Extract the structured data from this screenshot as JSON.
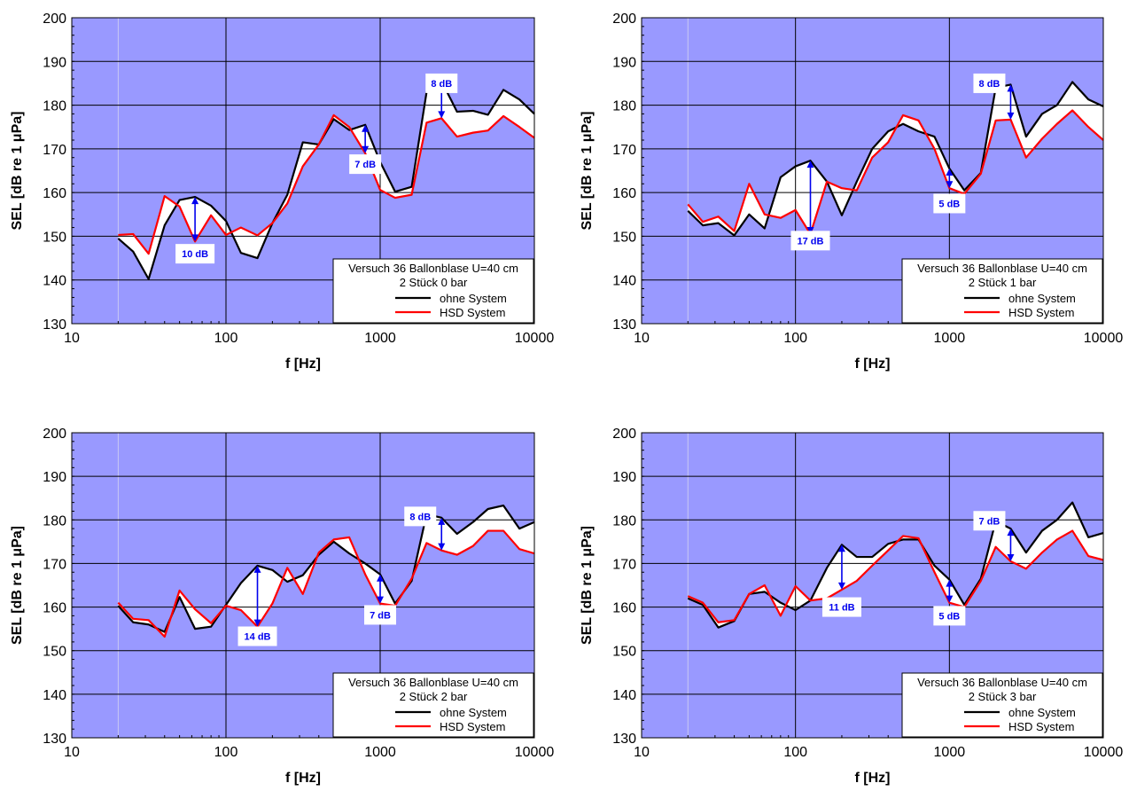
{
  "chart_data": [
    {
      "type": "line",
      "xscale": "log",
      "xlim": [
        10,
        10000
      ],
      "ylim": [
        130,
        200
      ],
      "xticks": [
        "10",
        "100",
        "1000",
        "10000"
      ],
      "yticks": [
        "130",
        "140",
        "150",
        "160",
        "170",
        "180",
        "190",
        "200"
      ],
      "xlabel": "f [Hz]",
      "ylabel": "SEL [dB re 1 μPa]",
      "plot_background": "#9999ff",
      "fill_between_color": "#ffffff",
      "grid": true,
      "legend": {
        "placement": "bottom-right",
        "title_line1": "Versuch 36 Ballonblase U=40 cm",
        "title_line2": "2 Stück 0 bar",
        "entries": [
          "ohne System",
          "HSD System"
        ]
      },
      "x": [
        20,
        25,
        31.5,
        40,
        50,
        63,
        80,
        100,
        125,
        160,
        200,
        250,
        315,
        400,
        500,
        630,
        800,
        1000,
        1250,
        1600,
        2000,
        2500,
        3150,
        4000,
        5000,
        6300,
        8000,
        10000
      ],
      "series": [
        {
          "name": "ohne System",
          "color": "#000000",
          "values": [
            149.5,
            146.5,
            140.2,
            152.5,
            158.3,
            159.0,
            157.0,
            153.5,
            146.2,
            145.0,
            153.0,
            159.5,
            171.5,
            171.0,
            176.8,
            174.3,
            175.5,
            167.0,
            160.2,
            161.3,
            183.0,
            185.5,
            178.5,
            178.7,
            177.8,
            183.5,
            181.3,
            178.0
          ]
        },
        {
          "name": "HSD System",
          "color": "#ff0000",
          "values": [
            150.3,
            150.5,
            146.0,
            159.2,
            156.8,
            148.8,
            154.8,
            150.3,
            152.0,
            150.2,
            153.0,
            157.5,
            166.0,
            171.0,
            177.7,
            175.0,
            169.0,
            160.6,
            158.8,
            159.5,
            176.0,
            177.0,
            172.8,
            173.7,
            174.2,
            177.5,
            175.0,
            172.5
          ]
        }
      ],
      "annotations": [
        {
          "text": "10 dB",
          "x": 63,
          "y_from": 159.0,
          "y_to": 148.8,
          "label_y": 146.0
        },
        {
          "text": "7 dB",
          "x": 800,
          "y_from": 175.5,
          "y_to": 169.0,
          "label_y": 166.5
        },
        {
          "text": "8 dB",
          "x": 2500,
          "y_from": 185.5,
          "y_to": 177.0,
          "label_y": 185.0
        }
      ]
    },
    {
      "type": "line",
      "xscale": "log",
      "xlim": [
        10,
        10000
      ],
      "ylim": [
        130,
        200
      ],
      "xticks": [
        "10",
        "100",
        "1000",
        "10000"
      ],
      "yticks": [
        "130",
        "140",
        "150",
        "160",
        "170",
        "180",
        "190",
        "200"
      ],
      "xlabel": "f [Hz]",
      "ylabel": "SEL [dB re 1 μPa]",
      "plot_background": "#9999ff",
      "fill_between_color": "#ffffff",
      "grid": true,
      "legend": {
        "placement": "bottom-right",
        "title_line1": "Versuch 36 Ballonblase U=40 cm",
        "title_line2": "2 Stück 1 bar",
        "entries": [
          "ohne System",
          "HSD System"
        ]
      },
      "x": [
        20,
        25,
        31.5,
        40,
        50,
        63,
        80,
        100,
        125,
        160,
        200,
        250,
        315,
        400,
        500,
        630,
        800,
        1000,
        1250,
        1600,
        2000,
        2500,
        3150,
        4000,
        5000,
        6300,
        8000,
        10000
      ],
      "series": [
        {
          "name": "ohne System",
          "color": "#000000",
          "values": [
            155.8,
            152.5,
            153.0,
            150.2,
            155.0,
            151.8,
            163.5,
            166.0,
            167.3,
            162.5,
            154.8,
            162.5,
            170.0,
            174.0,
            175.7,
            174.0,
            172.8,
            165.5,
            160.5,
            164.5,
            184.0,
            184.7,
            172.8,
            178.0,
            180.0,
            185.3,
            181.3,
            179.7
          ]
        },
        {
          "name": "HSD System",
          "color": "#ff0000",
          "values": [
            157.3,
            153.3,
            154.5,
            151.2,
            162.0,
            155.0,
            154.2,
            156.0,
            150.5,
            162.5,
            161.0,
            160.5,
            168.0,
            171.5,
            177.7,
            176.5,
            170.0,
            161.0,
            159.7,
            164.3,
            176.5,
            176.7,
            168.0,
            172.3,
            175.7,
            178.8,
            175.0,
            172.0
          ]
        }
      ],
      "annotations": [
        {
          "text": "17 dB",
          "x": 125,
          "y_from": 167.3,
          "y_to": 150.5,
          "label_y": 149.0
        },
        {
          "text": "5 dB",
          "x": 1000,
          "y_from": 165.5,
          "y_to": 161.0,
          "label_y": 157.5
        },
        {
          "text": "8 dB",
          "x": 2500,
          "y_from": 184.7,
          "y_to": 176.7,
          "label_y": 185.0
        }
      ]
    },
    {
      "type": "line",
      "xscale": "log",
      "xlim": [
        10,
        10000
      ],
      "ylim": [
        130,
        200
      ],
      "xticks": [
        "10",
        "100",
        "1000",
        "10000"
      ],
      "yticks": [
        "130",
        "140",
        "150",
        "160",
        "170",
        "180",
        "190",
        "200"
      ],
      "xlabel": "f [Hz]",
      "ylabel": "SEL [dB re 1 μPa]",
      "plot_background": "#9999ff",
      "fill_between_color": "#ffffff",
      "grid": true,
      "legend": {
        "placement": "bottom-right",
        "title_line1": "Versuch 36 Ballonblase U=40 cm",
        "title_line2": "2 Stück 2 bar",
        "entries": [
          "ohne System",
          "HSD System"
        ]
      },
      "x": [
        20,
        25,
        31.5,
        40,
        50,
        63,
        80,
        100,
        125,
        160,
        200,
        250,
        315,
        400,
        500,
        630,
        800,
        1000,
        1250,
        1600,
        2000,
        2500,
        3150,
        4000,
        5000,
        6300,
        8000,
        10000
      ],
      "series": [
        {
          "name": "ohne System",
          "color": "#000000",
          "values": [
            160.3,
            156.5,
            156.0,
            154.3,
            162.3,
            155.0,
            155.5,
            160.5,
            165.5,
            169.5,
            168.5,
            165.8,
            167.3,
            172.0,
            175.0,
            172.3,
            170.0,
            167.5,
            160.8,
            166.0,
            181.3,
            180.5,
            176.8,
            179.5,
            182.5,
            183.3,
            178.0,
            179.5
          ]
        },
        {
          "name": "HSD System",
          "color": "#ff0000",
          "values": [
            161.0,
            157.3,
            157.0,
            153.2,
            163.8,
            159.5,
            156.3,
            160.3,
            159.3,
            155.5,
            160.8,
            169.0,
            163.0,
            172.5,
            175.5,
            176.0,
            167.5,
            160.8,
            160.3,
            166.5,
            174.7,
            173.0,
            172.0,
            174.0,
            177.5,
            177.5,
            173.3,
            172.3
          ]
        }
      ],
      "annotations": [
        {
          "text": "14 dB",
          "x": 160,
          "y_from": 169.5,
          "y_to": 155.5,
          "label_y": 153.3
        },
        {
          "text": "7 dB",
          "x": 1000,
          "y_from": 167.5,
          "y_to": 160.8,
          "label_y": 158.2
        },
        {
          "text": "8 dB",
          "x": 2500,
          "y_from": 180.5,
          "y_to": 173.0,
          "label_y": 180.8
        }
      ]
    },
    {
      "type": "line",
      "xscale": "log",
      "xlim": [
        10,
        10000
      ],
      "ylim": [
        130,
        200
      ],
      "xticks": [
        "10",
        "100",
        "1000",
        "10000"
      ],
      "yticks": [
        "130",
        "140",
        "150",
        "160",
        "170",
        "180",
        "190",
        "200"
      ],
      "xlabel": "f [Hz]",
      "ylabel": "SEL [dB re 1 μPa]",
      "plot_background": "#9999ff",
      "fill_between_color": "#ffffff",
      "grid": true,
      "legend": {
        "placement": "bottom-right",
        "title_line1": "Versuch 36 Ballonblase U=40 cm",
        "title_line2": "2 Stück 3 bar",
        "entries": [
          "ohne System",
          "HSD System"
        ]
      },
      "x": [
        20,
        25,
        31.5,
        40,
        50,
        63,
        80,
        100,
        125,
        160,
        200,
        250,
        315,
        400,
        500,
        630,
        800,
        1000,
        1250,
        1600,
        2000,
        2500,
        3150,
        4000,
        5000,
        6300,
        8000,
        10000
      ],
      "series": [
        {
          "name": "ohne System",
          "color": "#000000",
          "values": [
            162.0,
            160.5,
            155.3,
            156.8,
            163.0,
            163.5,
            161.0,
            159.3,
            161.5,
            169.0,
            174.3,
            171.5,
            171.5,
            174.5,
            175.5,
            175.5,
            169.5,
            166.3,
            160.5,
            166.5,
            179.7,
            178.0,
            172.5,
            177.5,
            180.0,
            184.0,
            176.0,
            177.0
          ]
        },
        {
          "name": "HSD System",
          "color": "#ff0000",
          "values": [
            162.5,
            161.0,
            156.5,
            157.0,
            163.0,
            165.0,
            158.0,
            164.8,
            161.5,
            162.0,
            164.0,
            166.0,
            169.5,
            173.0,
            176.3,
            175.8,
            168.0,
            161.0,
            160.0,
            166.0,
            173.8,
            170.5,
            168.8,
            172.5,
            175.5,
            177.5,
            171.7,
            170.8
          ]
        }
      ],
      "annotations": [
        {
          "text": "11 dB",
          "x": 200,
          "y_from": 174.3,
          "y_to": 164.0,
          "label_y": 160.0
        },
        {
          "text": "5 dB",
          "x": 1000,
          "y_from": 166.3,
          "y_to": 161.0,
          "label_y": 158.0
        },
        {
          "text": "7 dB",
          "x": 2500,
          "y_from": 178.0,
          "y_to": 170.5,
          "label_y": 179.8
        }
      ]
    }
  ]
}
